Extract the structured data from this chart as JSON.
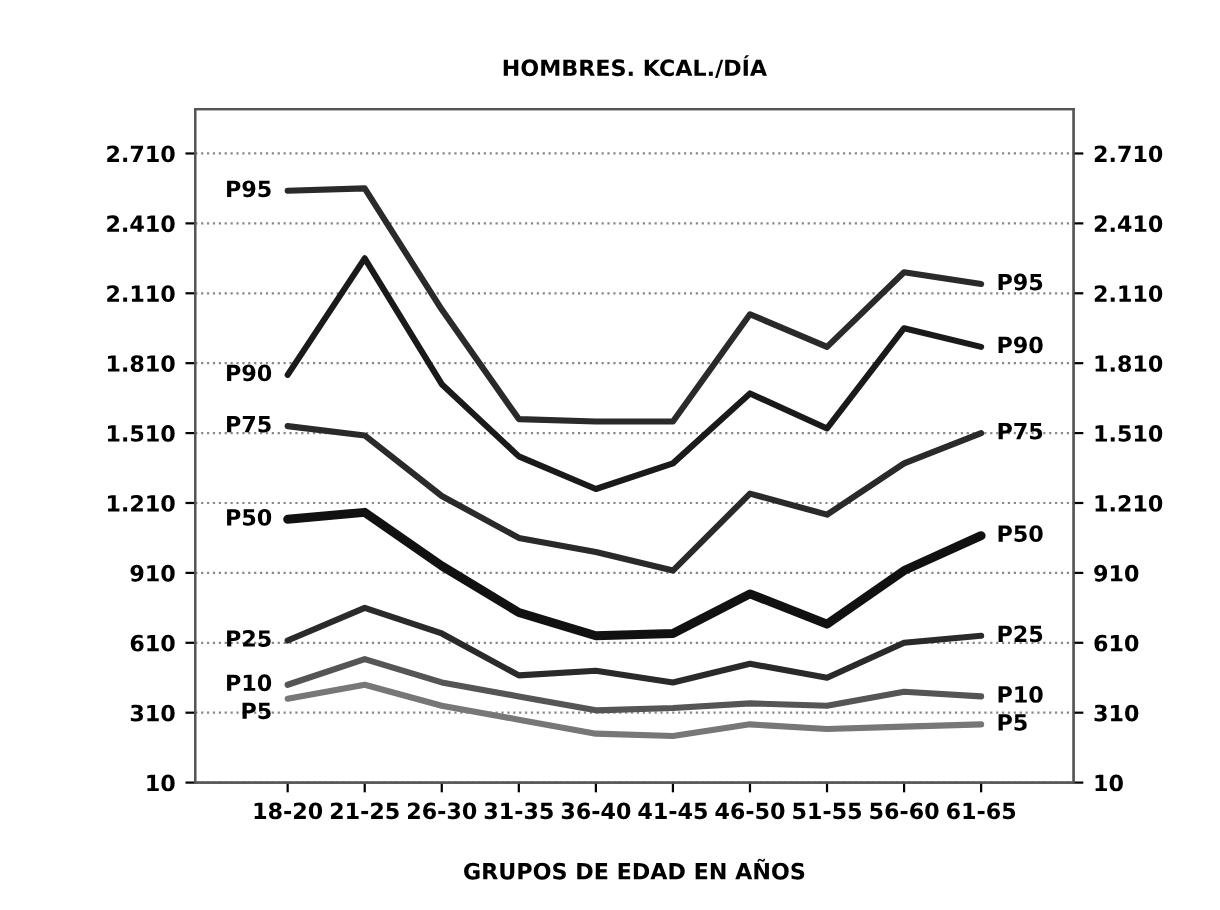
{
  "chart_data": {
    "type": "line",
    "title": "HOMBRES. KCAL./DÍA",
    "xlabel": "GRUPOS DE EDAD EN AÑOS",
    "categories": [
      "18-20",
      "21-25",
      "26-30",
      "31-35",
      "36-40",
      "41-45",
      "46-50",
      "51-55",
      "56-60",
      "61-65"
    ],
    "series": [
      {
        "name": "P95",
        "color": "#2a2a2a",
        "values": [
          2550,
          2560,
          2040,
          1570,
          1560,
          1560,
          2020,
          1880,
          2200,
          2150
        ]
      },
      {
        "name": "P90",
        "color": "#1a1a1a",
        "values": [
          1760,
          2260,
          1720,
          1410,
          1270,
          1380,
          1680,
          1530,
          1960,
          1880
        ]
      },
      {
        "name": "P75",
        "color": "#2a2a2a",
        "values": [
          1540,
          1500,
          1240,
          1060,
          1000,
          920,
          1250,
          1160,
          1380,
          1510
        ]
      },
      {
        "name": "P50",
        "color": "#111111",
        "values": [
          1140,
          1170,
          940,
          740,
          640,
          650,
          820,
          690,
          920,
          1070
        ]
      },
      {
        "name": "P25",
        "color": "#2a2a2a",
        "values": [
          620,
          760,
          650,
          470,
          490,
          440,
          520,
          460,
          610,
          640
        ]
      },
      {
        "name": "P10",
        "color": "#555555",
        "values": [
          430,
          540,
          440,
          380,
          320,
          330,
          350,
          340,
          400,
          380
        ]
      },
      {
        "name": "P5",
        "color": "#777777",
        "values": [
          370,
          430,
          340,
          280,
          220,
          210,
          260,
          240,
          250,
          260
        ]
      }
    ],
    "ylim": [
      10,
      2900
    ],
    "yticks": [
      {
        "value": 10,
        "label": "10"
      },
      {
        "value": 310,
        "label": "310"
      },
      {
        "value": 610,
        "label": "610"
      },
      {
        "value": 910,
        "label": "910"
      },
      {
        "value": 1210,
        "label": "1.210"
      },
      {
        "value": 1510,
        "label": "1.510"
      },
      {
        "value": 1810,
        "label": "1.810"
      },
      {
        "value": 2110,
        "label": "2.110"
      },
      {
        "value": 2410,
        "label": "2.410"
      },
      {
        "value": 2710,
        "label": "2.710"
      }
    ],
    "y2lim": [
      10,
      2900
    ],
    "y2ticks": [
      {
        "value": 10,
        "label": "10"
      },
      {
        "value": 310,
        "label": "310"
      },
      {
        "value": 610,
        "label": "610"
      },
      {
        "value": 910,
        "label": "910"
      },
      {
        "value": 1210,
        "label": "1.210"
      },
      {
        "value": 1510,
        "label": "1.510"
      },
      {
        "value": 1810,
        "label": "1.810"
      },
      {
        "value": 2110,
        "label": "2.110"
      },
      {
        "value": 2410,
        "label": "2.410"
      },
      {
        "value": 2710,
        "label": "2.710"
      }
    ],
    "grid": "y",
    "legend": false,
    "marker": "none",
    "line_style": "solid"
  }
}
